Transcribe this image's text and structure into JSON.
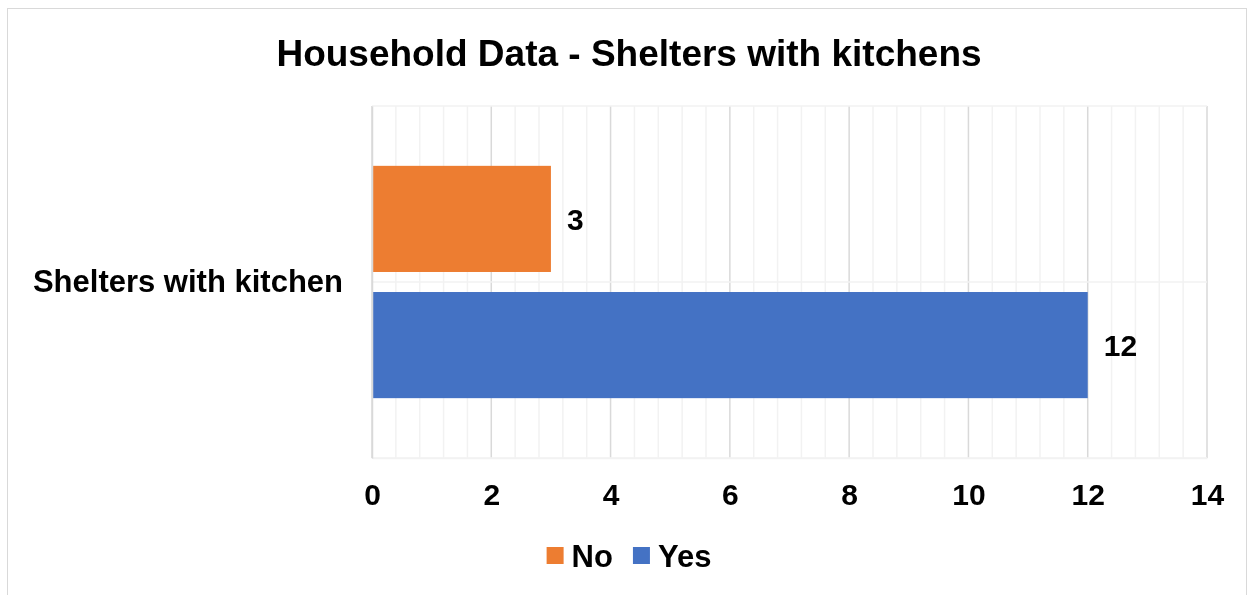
{
  "chart_data": {
    "type": "bar",
    "orientation": "horizontal",
    "title": "Household Data - Shelters with kitchens",
    "categories": [
      "Shelters with kitchen"
    ],
    "series": [
      {
        "name": "No",
        "color": "#ed7d31",
        "values": [
          3
        ]
      },
      {
        "name": "Yes",
        "color": "#4472c4",
        "values": [
          12
        ]
      }
    ],
    "xlim": [
      0,
      14
    ],
    "xticks": [
      0,
      2,
      4,
      6,
      8,
      10,
      12,
      14
    ],
    "grid": true,
    "legend": "bottom",
    "data_labels": true
  }
}
